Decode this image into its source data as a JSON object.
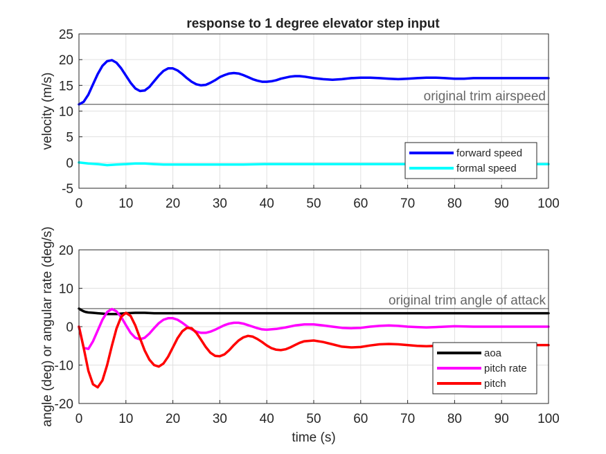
{
  "figure": {
    "title": "response to 1 degree elevator step input"
  },
  "chart_data": [
    {
      "type": "line",
      "xlabel": "",
      "ylabel": "velocity (m/s)",
      "xlim": [
        0,
        100
      ],
      "ylim": [
        -5,
        25
      ],
      "xticks": [
        "0",
        "10",
        "20",
        "30",
        "40",
        "50",
        "60",
        "70",
        "80",
        "90",
        "100"
      ],
      "yticks": [
        "-5",
        "0",
        "5",
        "10",
        "15",
        "20",
        "25"
      ],
      "grid": true,
      "legend_position": "bottom-right",
      "reference_line": {
        "y": 11.3,
        "label": "original trim airspeed"
      },
      "series": [
        {
          "name": "forward speed",
          "color": "#0000ff",
          "x": [
            0,
            1,
            2,
            3,
            4,
            5,
            6,
            7,
            8,
            9,
            10,
            11,
            12,
            13,
            14,
            15,
            16,
            17,
            18,
            19,
            20,
            21,
            22,
            23,
            24,
            25,
            26,
            27,
            28,
            29,
            30,
            31,
            32,
            33,
            34,
            35,
            36,
            37,
            38,
            39,
            40,
            41,
            42,
            43,
            44,
            45,
            46,
            47,
            48,
            50,
            52,
            54,
            56,
            58,
            60,
            62,
            64,
            66,
            68,
            70,
            72,
            74,
            76,
            78,
            80,
            82,
            84,
            86,
            88,
            90,
            92,
            94,
            96,
            98,
            100
          ],
          "y": [
            11.3,
            11.8,
            13.2,
            15.2,
            17.2,
            18.8,
            19.7,
            19.9,
            19.4,
            18.3,
            16.9,
            15.5,
            14.4,
            13.9,
            14.0,
            14.7,
            15.8,
            16.9,
            17.8,
            18.3,
            18.3,
            17.9,
            17.2,
            16.4,
            15.7,
            15.2,
            15.0,
            15.1,
            15.5,
            16.0,
            16.6,
            17.0,
            17.3,
            17.4,
            17.3,
            17.0,
            16.6,
            16.2,
            15.9,
            15.7,
            15.7,
            15.8,
            16.0,
            16.3,
            16.5,
            16.7,
            16.8,
            16.8,
            16.7,
            16.4,
            16.2,
            16.1,
            16.2,
            16.4,
            16.5,
            16.5,
            16.4,
            16.3,
            16.2,
            16.3,
            16.4,
            16.5,
            16.5,
            16.4,
            16.3,
            16.3,
            16.4,
            16.4,
            16.4,
            16.4,
            16.4,
            16.4,
            16.4,
            16.4,
            16.4
          ]
        },
        {
          "name": "formal speed",
          "color": "#00ffff",
          "x": [
            0,
            2,
            4,
            6,
            8,
            10,
            12,
            14,
            16,
            18,
            20,
            25,
            30,
            35,
            40,
            45,
            50,
            60,
            70,
            80,
            90,
            100
          ],
          "y": [
            0,
            -0.2,
            -0.3,
            -0.5,
            -0.4,
            -0.3,
            -0.2,
            -0.2,
            -0.3,
            -0.4,
            -0.4,
            -0.4,
            -0.4,
            -0.4,
            -0.3,
            -0.3,
            -0.3,
            -0.3,
            -0.3,
            -0.3,
            -0.3,
            -0.3
          ]
        }
      ]
    },
    {
      "type": "line",
      "xlabel": "time (s)",
      "ylabel": "angle (deg) or angular rate (deg/s)",
      "xlim": [
        0,
        100
      ],
      "ylim": [
        -20,
        20
      ],
      "xticks": [
        "0",
        "10",
        "20",
        "30",
        "40",
        "50",
        "60",
        "70",
        "80",
        "90",
        "100"
      ],
      "yticks": [
        "-20",
        "-10",
        "0",
        "10",
        "20"
      ],
      "grid": true,
      "legend_position": "bottom-right",
      "reference_line": {
        "y": 4.7,
        "label": "original trim angle of attack"
      },
      "series": [
        {
          "name": "aoa",
          "color": "#000000",
          "x": [
            0,
            0.5,
            1,
            1.5,
            2,
            3,
            4,
            5,
            6,
            7,
            8,
            9,
            10,
            12,
            14,
            16,
            18,
            20,
            25,
            30,
            40,
            50,
            60,
            70,
            80,
            90,
            100
          ],
          "y": [
            4.7,
            4.3,
            4.0,
            3.8,
            3.7,
            3.6,
            3.5,
            3.4,
            3.3,
            3.3,
            3.3,
            3.4,
            3.5,
            3.6,
            3.6,
            3.5,
            3.5,
            3.5,
            3.5,
            3.5,
            3.5,
            3.5,
            3.5,
            3.5,
            3.5,
            3.5,
            3.5
          ]
        },
        {
          "name": "pitch rate",
          "color": "#ff00ff",
          "x": [
            0,
            1,
            2,
            3,
            4,
            5,
            6,
            7,
            8,
            9,
            10,
            11,
            12,
            13,
            14,
            15,
            16,
            17,
            18,
            19,
            20,
            21,
            22,
            23,
            24,
            25,
            26,
            27,
            28,
            29,
            30,
            31,
            32,
            33,
            34,
            35,
            36,
            37,
            38,
            39,
            40,
            42,
            44,
            46,
            48,
            50,
            52,
            54,
            56,
            58,
            60,
            62,
            64,
            66,
            68,
            70,
            72,
            74,
            76,
            78,
            80,
            84,
            88,
            92,
            96,
            100
          ],
          "y": [
            0,
            -5.5,
            -5.8,
            -3.8,
            -1.0,
            1.8,
            3.8,
            4.6,
            4.0,
            2.5,
            0.4,
            -1.6,
            -2.9,
            -3.3,
            -2.9,
            -1.8,
            -0.4,
            0.9,
            1.8,
            2.2,
            2.2,
            1.8,
            1.0,
            0.1,
            -0.7,
            -1.3,
            -1.6,
            -1.6,
            -1.3,
            -0.8,
            -0.2,
            0.4,
            0.8,
            1.0,
            1.0,
            0.8,
            0.4,
            0.0,
            -0.4,
            -0.7,
            -0.8,
            -0.6,
            -0.2,
            0.3,
            0.6,
            0.6,
            0.3,
            0.0,
            -0.3,
            -0.4,
            -0.3,
            0.0,
            0.2,
            0.3,
            0.2,
            0.0,
            -0.1,
            -0.2,
            -0.1,
            0.0,
            0.1,
            0.0,
            0.0,
            0.0,
            0.0,
            0.0
          ]
        },
        {
          "name": "pitch",
          "color": "#ff0000",
          "x": [
            0,
            1,
            2,
            3,
            4,
            5,
            6,
            7,
            8,
            9,
            10,
            11,
            12,
            13,
            14,
            15,
            16,
            17,
            18,
            19,
            20,
            21,
            22,
            23,
            24,
            25,
            26,
            27,
            28,
            29,
            30,
            31,
            32,
            33,
            34,
            35,
            36,
            37,
            38,
            39,
            40,
            41,
            42,
            43,
            44,
            45,
            46,
            47,
            48,
            50,
            52,
            54,
            56,
            58,
            60,
            62,
            64,
            66,
            68,
            70,
            72,
            74,
            76,
            78,
            80,
            82,
            84,
            86,
            88,
            90,
            92,
            94,
            96,
            98,
            100
          ],
          "y": [
            0,
            -5.5,
            -11.5,
            -15.0,
            -15.8,
            -14.0,
            -10.0,
            -5.0,
            -0.5,
            2.6,
            3.6,
            2.8,
            0.3,
            -3.0,
            -6.2,
            -8.6,
            -10.0,
            -10.4,
            -9.6,
            -7.8,
            -5.4,
            -3.0,
            -1.2,
            -0.3,
            -0.4,
            -1.6,
            -3.4,
            -5.3,
            -6.8,
            -7.6,
            -7.7,
            -7.2,
            -6.1,
            -4.8,
            -3.6,
            -2.8,
            -2.4,
            -2.6,
            -3.2,
            -4.0,
            -4.9,
            -5.6,
            -6.0,
            -6.1,
            -5.9,
            -5.4,
            -4.8,
            -4.2,
            -3.8,
            -3.6,
            -4.0,
            -4.6,
            -5.2,
            -5.4,
            -5.3,
            -4.9,
            -4.6,
            -4.5,
            -4.6,
            -4.8,
            -5.0,
            -5.1,
            -5.0,
            -4.9,
            -4.8,
            -4.8,
            -4.8,
            -4.9,
            -4.9,
            -4.9,
            -4.9,
            -4.9,
            -4.8,
            -4.8,
            -4.8
          ]
        }
      ]
    }
  ]
}
